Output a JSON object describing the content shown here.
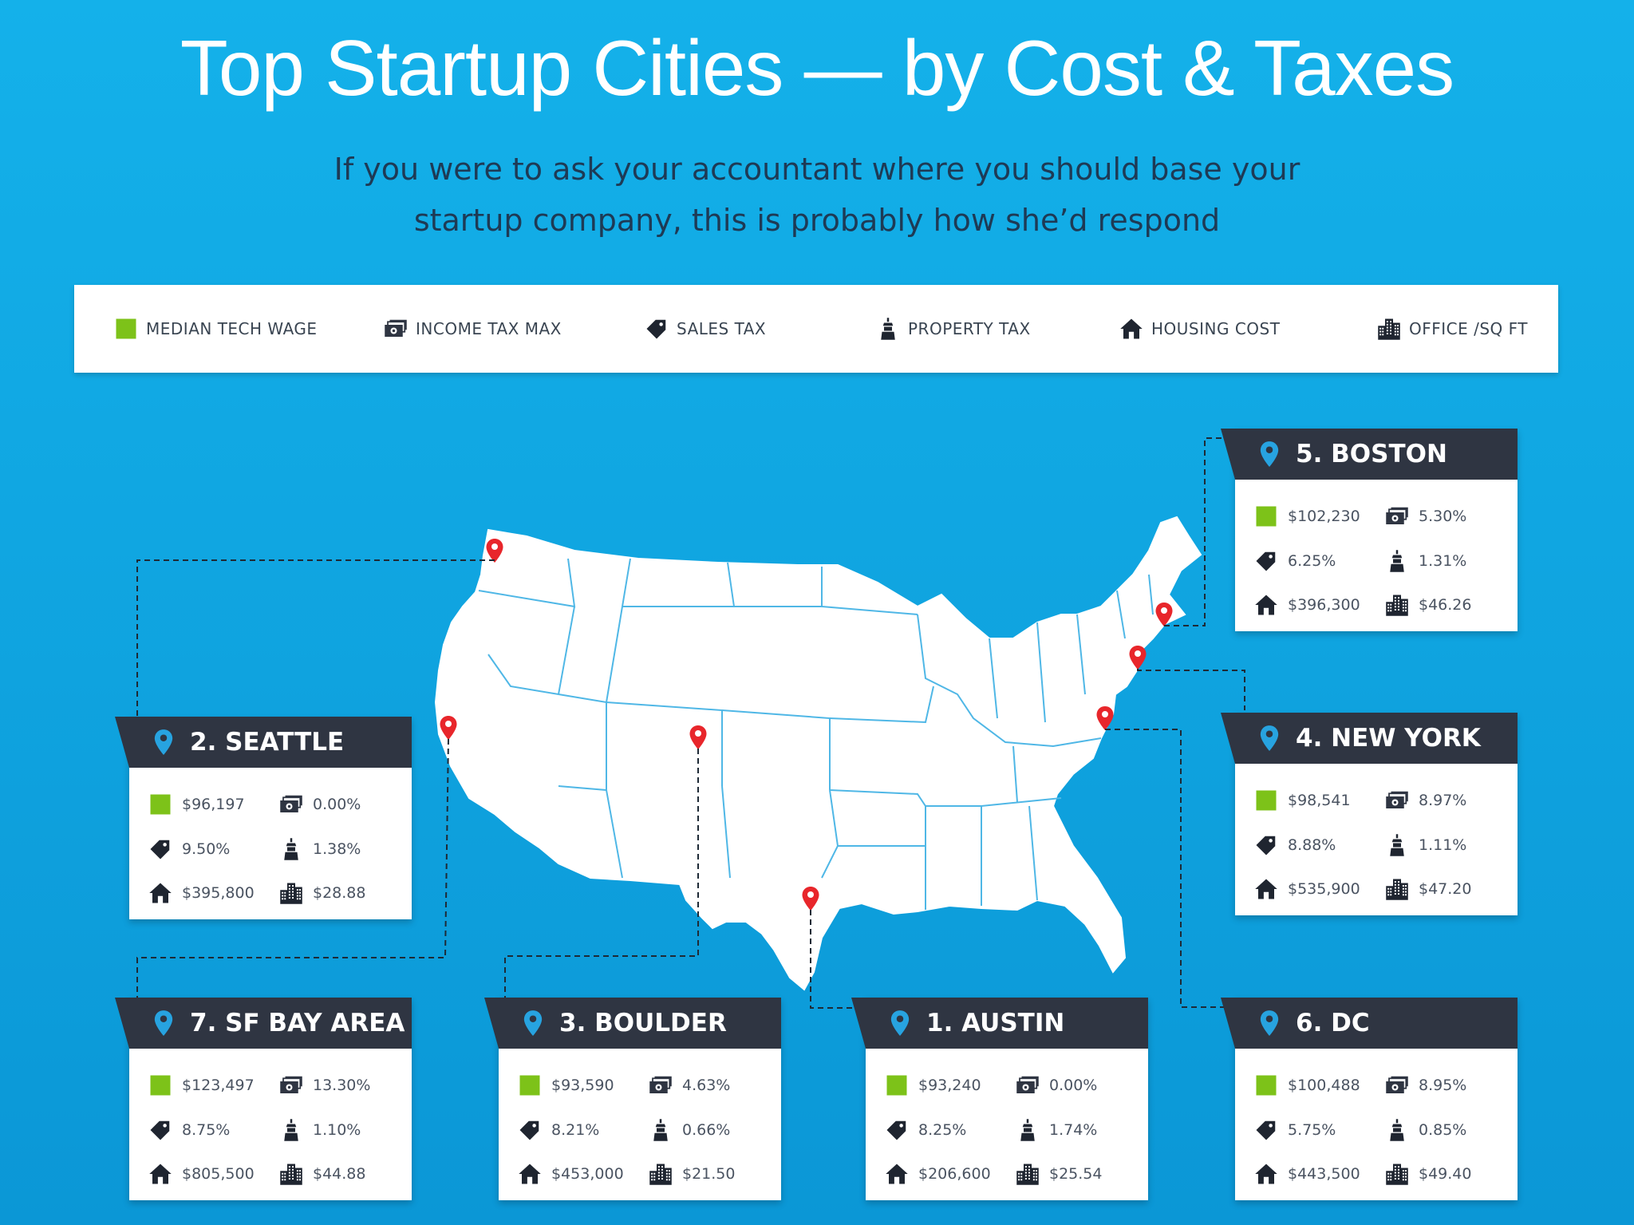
{
  "title": "Top Startup Cities — by Cost & Taxes",
  "subtitle_line1": "If you were to ask your accountant where you should base your",
  "subtitle_line2": "startup company, this is probably how she’d respond",
  "legend": {
    "median_tech_wage": "MEDIAN TECH WAGE",
    "income_tax_max": "INCOME TAX MAX",
    "sales_tax": "SALES TAX",
    "property_tax": "PROPERTY TAX",
    "housing_cost": "HOUSING COST",
    "office_sq_ft": "OFFICE /SQ FT"
  },
  "colors": {
    "background": "#12a9e5",
    "wage_green": "#7dc219",
    "header_dark": "#2f3542",
    "pin_red": "#e8262b",
    "pin_blue": "#27a3e0"
  },
  "icons": [
    "green-square-icon",
    "cash-icon",
    "tag-icon",
    "property-icon",
    "house-icon",
    "buildings-icon",
    "map-pin-icon"
  ],
  "cities": {
    "boston": {
      "name": "5. BOSTON",
      "wage": "$102,230",
      "income_tax": "5.30%",
      "sales_tax": "6.25%",
      "property_tax": "1.31%",
      "housing": "$396,300",
      "office": "$46.26"
    },
    "seattle": {
      "name": "2. SEATTLE",
      "wage": "$96,197",
      "income_tax": "0.00%",
      "sales_tax": "9.50%",
      "property_tax": "1.38%",
      "housing": "$395,800",
      "office": "$28.88"
    },
    "new_york": {
      "name": "4. NEW YORK",
      "wage": "$98,541",
      "income_tax": "8.97%",
      "sales_tax": "8.88%",
      "property_tax": "1.11%",
      "housing": "$535,900",
      "office": "$47.20"
    },
    "sf": {
      "name": "7. SF BAY AREA",
      "wage": "$123,497",
      "income_tax": "13.30%",
      "sales_tax": "8.75%",
      "property_tax": "1.10%",
      "housing": "$805,500",
      "office": "$44.88"
    },
    "boulder": {
      "name": "3. BOULDER",
      "wage": "$93,590",
      "income_tax": "4.63%",
      "sales_tax": "8.21%",
      "property_tax": "0.66%",
      "housing": "$453,000",
      "office": "$21.50"
    },
    "austin": {
      "name": "1. AUSTIN",
      "wage": "$93,240",
      "income_tax": "0.00%",
      "sales_tax": "8.25%",
      "property_tax": "1.74%",
      "housing": "$206,600",
      "office": "$25.54"
    },
    "dc": {
      "name": "6. DC",
      "wage": "$100,488",
      "income_tax": "8.95%",
      "sales_tax": "5.75%",
      "property_tax": "0.85%",
      "housing": "$443,500",
      "office": "$49.40"
    }
  }
}
